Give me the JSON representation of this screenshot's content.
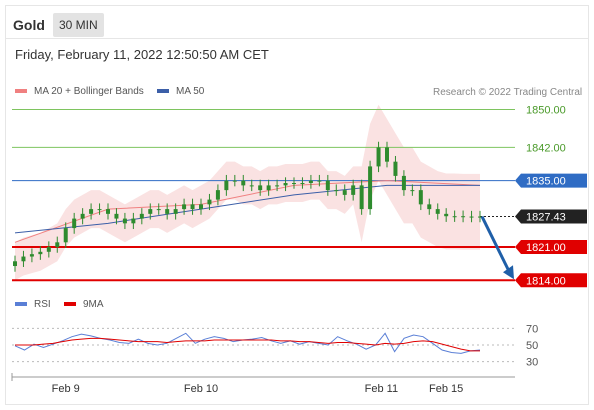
{
  "header": {
    "symbol": "Gold",
    "timeframe": "30 MIN"
  },
  "datetime": "Friday, February 11, 2022 12:50:50 AM CET",
  "credit": "Research © 2022 Trading Central",
  "colors": {
    "resistance": "#7ec45f",
    "pivot": "#2f6cc4",
    "support": "#e00000",
    "last": "#222222",
    "candle": "#2e8b2e",
    "bollinger": "#f7cfcf",
    "ma20": "#f08080",
    "ma50": "#3c5fa8",
    "rsi": "#5a7fd6",
    "rsi_ma": "#e00000",
    "arrow": "#1f5fa8"
  },
  "chart_data": [
    {
      "type": "line",
      "title": "",
      "series": [
        {
          "name": "MA 20 + Bollinger Bands",
          "color": "#f08080",
          "x": [
            "Feb 9 00:00",
            "Feb 9 12:00",
            "Feb 10 00:00",
            "Feb 10 12:00",
            "Feb 11 00:00",
            "Feb 11 06:00"
          ],
          "values": [
            1822,
            1829,
            1830,
            1834,
            1835,
            1834
          ]
        },
        {
          "name": "MA 50",
          "color": "#3c5fa8",
          "x": [
            "Feb 9 00:00",
            "Feb 9 12:00",
            "Feb 10 00:00",
            "Feb 10 12:00",
            "Feb 11 00:00",
            "Feb 11 06:00"
          ],
          "values": [
            1824,
            1826,
            1829,
            1832,
            1834,
            1834
          ]
        }
      ],
      "price_x": [
        0,
        3,
        6,
        9,
        12,
        15,
        18,
        21,
        24,
        27,
        30,
        33,
        36,
        39,
        42,
        45,
        48,
        51,
        54,
        57,
        60,
        63,
        66,
        69,
        72,
        75,
        78,
        81,
        84,
        87,
        90,
        93,
        96,
        99,
        102,
        105,
        108,
        111,
        114,
        117,
        120,
        123,
        126,
        129,
        132,
        135,
        138,
        141,
        144,
        147,
        150,
        153,
        156,
        159,
        162,
        165
      ],
      "price_close": [
        1818,
        1819,
        1819.5,
        1820,
        1821,
        1822,
        1825,
        1827,
        1828,
        1829,
        1829,
        1828,
        1827,
        1826,
        1827,
        1828,
        1829,
        1829,
        1828,
        1829,
        1830,
        1829,
        1830,
        1831,
        1833,
        1835,
        1835,
        1834,
        1834,
        1833,
        1834,
        1834,
        1834.5,
        1834.5,
        1834.5,
        1835,
        1835,
        1833,
        1833,
        1832,
        1834,
        1829,
        1838,
        1842,
        1839,
        1836,
        1833,
        1833,
        1830,
        1829,
        1828,
        1827.5,
        1827.5,
        1827.43,
        1827.43,
        1827.43
      ],
      "price_levels": [
        {
          "label": "1850.00",
          "value": 1850,
          "kind": "resistance"
        },
        {
          "label": "1842.00",
          "value": 1842,
          "kind": "resistance"
        },
        {
          "label": "1835.00",
          "value": 1835,
          "kind": "pivot"
        },
        {
          "label": "1827.43",
          "value": 1827.43,
          "kind": "last"
        },
        {
          "label": "1821.00",
          "value": 1821,
          "kind": "support"
        },
        {
          "label": "1814.00",
          "value": 1814,
          "kind": "support"
        }
      ],
      "ylim": [
        1813,
        1852
      ],
      "x_ticks": [
        {
          "label": "Feb 9",
          "at": 18
        },
        {
          "label": "Feb 10",
          "at": 66
        },
        {
          "label": "Feb 11",
          "at": 130
        },
        {
          "label": "Feb 15",
          "at": 153
        }
      ],
      "legend_position": "top-left",
      "annotations": [
        "Arrow pointing down to 1814.00"
      ]
    },
    {
      "type": "line",
      "series": [
        {
          "name": "RSI",
          "color": "#5a7fd6",
          "values": [
            49,
            44,
            51,
            47,
            51,
            55,
            60,
            63,
            61,
            58,
            56,
            53,
            52,
            57,
            52,
            50,
            52,
            58,
            64,
            52,
            57,
            60,
            58,
            54,
            56,
            57,
            59,
            55,
            52,
            55,
            51,
            54,
            52,
            50,
            60,
            55,
            51,
            45,
            50,
            64,
            42,
            58,
            62,
            60,
            52,
            44,
            41,
            40,
            43,
            44
          ]
        },
        {
          "name": "9MA",
          "color": "#e00000",
          "values": [
            50,
            50,
            50,
            51,
            52,
            54,
            56,
            57,
            58,
            58,
            57,
            56,
            55,
            54,
            54,
            54,
            53,
            54,
            55,
            55,
            55,
            56,
            56,
            56,
            56,
            56,
            56,
            56,
            55,
            55,
            54,
            54,
            53,
            52,
            53,
            53,
            52,
            51,
            50,
            52,
            51,
            52,
            54,
            55,
            54,
            51,
            48,
            45,
            43,
            43
          ]
        }
      ],
      "y_ticks": [
        "70",
        "50",
        "30"
      ],
      "ylim": [
        20,
        80
      ],
      "legend_position": "top-left"
    }
  ]
}
